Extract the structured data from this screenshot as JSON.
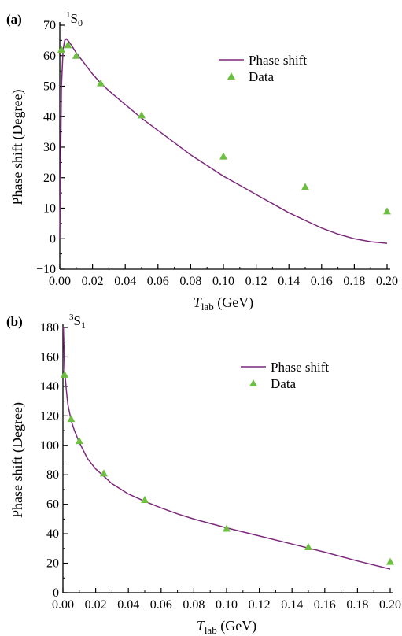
{
  "chart_data": [
    {
      "type": "line",
      "panel_label": "(a)",
      "state_label": {
        "sup": "1",
        "main": "S",
        "sub": "0"
      },
      "xlabel": {
        "main": "T",
        "sub": "lab",
        "rest": " (GeV)"
      },
      "ylabel": "Phase shift (Degree)",
      "xlim": [
        0,
        0.2
      ],
      "ylim": [
        -10,
        70
      ],
      "xticks": [
        0.0,
        0.02,
        0.04,
        0.06,
        0.08,
        0.1,
        0.12,
        0.14,
        0.16,
        0.18,
        0.2
      ],
      "xtick_labels": [
        "0.00",
        "0.02",
        "0.04",
        "0.06",
        "0.08",
        "0.10",
        "0.12",
        "0.14",
        "0.16",
        "0.18",
        "0.20"
      ],
      "yticks": [
        -10,
        0,
        10,
        20,
        30,
        40,
        50,
        60,
        70
      ],
      "ytick_labels": [
        "−10",
        "0",
        "10",
        "20",
        "30",
        "40",
        "50",
        "60",
        "70"
      ],
      "legend_position": "top-right",
      "series": [
        {
          "name": "Phase shift",
          "kind": "line",
          "color": "#7b2a7b",
          "x": [
            0.0,
            0.001,
            0.002,
            0.003,
            0.004,
            0.005,
            0.007,
            0.01,
            0.015,
            0.02,
            0.025,
            0.03,
            0.04,
            0.05,
            0.06,
            0.07,
            0.08,
            0.09,
            0.1,
            0.11,
            0.12,
            0.13,
            0.14,
            0.15,
            0.16,
            0.17,
            0.18,
            0.19,
            0.2
          ],
          "y": [
            0,
            50,
            62,
            65,
            65.5,
            65,
            63.5,
            61,
            57.5,
            54,
            51,
            48.5,
            44,
            39.5,
            35.5,
            31.5,
            27.5,
            24,
            20.5,
            17.5,
            14.5,
            11.5,
            8.5,
            6,
            3.5,
            1.5,
            0,
            -1,
            -1.5
          ]
        },
        {
          "name": "Data",
          "kind": "scatter",
          "color": "#6cbf3f",
          "x": [
            0.001,
            0.005,
            0.01,
            0.025,
            0.05,
            0.1,
            0.15,
            0.2
          ],
          "y": [
            62,
            63.5,
            60,
            51,
            40.5,
            27,
            17,
            9
          ]
        }
      ]
    },
    {
      "type": "line",
      "panel_label": "(b)",
      "state_label": {
        "sup": "3",
        "main": "S",
        "sub": "1"
      },
      "xlabel": {
        "main": "T",
        "sub": "lab",
        "rest": " (GeV)"
      },
      "ylabel": "Phase shift (Degree)",
      "xlim": [
        0,
        0.2
      ],
      "ylim": [
        0,
        180
      ],
      "xticks": [
        0.0,
        0.02,
        0.04,
        0.06,
        0.08,
        0.1,
        0.12,
        0.14,
        0.16,
        0.18,
        0.2
      ],
      "xtick_labels": [
        "0.00",
        "0.02",
        "0.04",
        "0.06",
        "0.08",
        "0.10",
        "0.12",
        "0.14",
        "0.16",
        "0.18",
        "0.20"
      ],
      "yticks": [
        0,
        20,
        40,
        60,
        80,
        100,
        120,
        140,
        160,
        180
      ],
      "ytick_labels": [
        "0",
        "20",
        "40",
        "60",
        "80",
        "100",
        "120",
        "140",
        "160",
        "180"
      ],
      "legend_position": "top-right",
      "series": [
        {
          "name": "Phase shift",
          "kind": "line",
          "color": "#7b2a7b",
          "x": [
            0.0003,
            0.0006,
            0.001,
            0.002,
            0.003,
            0.005,
            0.007,
            0.01,
            0.015,
            0.02,
            0.025,
            0.03,
            0.04,
            0.05,
            0.06,
            0.07,
            0.08,
            0.09,
            0.1,
            0.12,
            0.14,
            0.16,
            0.18,
            0.2
          ],
          "y": [
            180,
            168,
            152,
            138,
            128,
            117,
            110,
            102,
            91,
            84,
            79,
            74,
            67,
            62,
            57.5,
            53.5,
            50,
            47,
            44,
            38.5,
            33,
            27.5,
            21.5,
            16
          ]
        },
        {
          "name": "Data",
          "kind": "scatter",
          "color": "#6cbf3f",
          "x": [
            0.001,
            0.005,
            0.01,
            0.025,
            0.05,
            0.1,
            0.15,
            0.2
          ],
          "y": [
            148,
            118,
            103,
            81,
            63,
            43.5,
            31,
            21
          ]
        }
      ]
    }
  ]
}
